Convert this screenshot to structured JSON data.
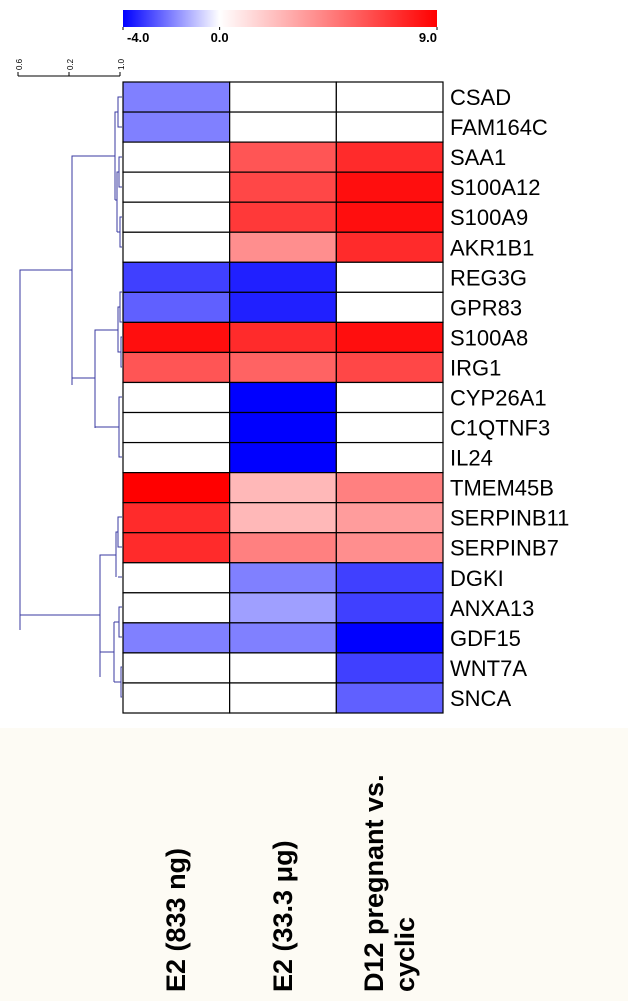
{
  "chart_data": {
    "type": "heatmap",
    "rows": [
      "CSAD",
      "FAM164C",
      "SAA1",
      "S100A12",
      "S100A9",
      "AKR1B1",
      "REG3G",
      "GPR83",
      "S100A8",
      "IRG1",
      "CYP26A1",
      "C1QTNF3",
      "IL24",
      "TMEM45B",
      "SERPINB11",
      "SERPINB7",
      "DGKI",
      "ANXA13",
      "GDF15",
      "WNT7A",
      "SNCA"
    ],
    "columns": [
      "E2 (833 ng)",
      "E2 (33.3 μg)",
      "D12 pregnant vs. cyclic"
    ],
    "values": [
      [
        -2,
        0,
        0
      ],
      [
        -2,
        0,
        0
      ],
      [
        0,
        6,
        7.5
      ],
      [
        0,
        6.5,
        8.5
      ],
      [
        0,
        7,
        8.5
      ],
      [
        0,
        4,
        7.5
      ],
      [
        -3,
        -3.5,
        0
      ],
      [
        -2.5,
        -3.5,
        0
      ],
      [
        8.5,
        7.5,
        8.5
      ],
      [
        6,
        5.5,
        6.5
      ],
      [
        0,
        -4,
        0
      ],
      [
        0,
        -4,
        0
      ],
      [
        0,
        -4,
        0
      ],
      [
        9,
        2.5,
        4.5
      ],
      [
        7.5,
        2.5,
        3.5
      ],
      [
        7.5,
        4.5,
        4
      ],
      [
        0,
        -2,
        -3
      ],
      [
        0,
        -1.5,
        -3
      ],
      [
        -2,
        -2,
        -4
      ],
      [
        0,
        0,
        -3
      ],
      [
        0,
        0,
        -2.5
      ]
    ],
    "colors": [
      "#0000ff",
      "#ffffff",
      "#ff0000"
    ],
    "colorbar_lim": [
      -4,
      9
    ],
    "colorbar_ticks": [
      {
        "value": -4,
        "label": "-4.0"
      },
      {
        "value": 0,
        "label": "0.0"
      },
      {
        "value": 9,
        "label": "9.0"
      }
    ],
    "dendrogram_scale_labels": [
      "0.6",
      "0.2",
      "1.0"
    ]
  }
}
